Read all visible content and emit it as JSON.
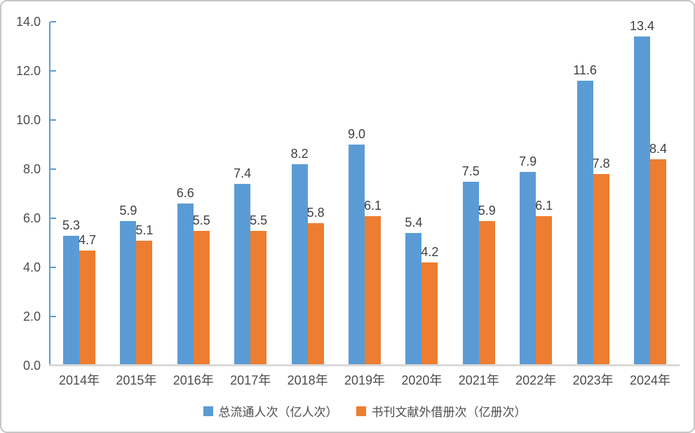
{
  "chart_data": {
    "type": "bar",
    "title": "",
    "categories": [
      "2014年",
      "2015年",
      "2016年",
      "2017年",
      "2018年",
      "2019年",
      "2020年",
      "2021年",
      "2022年",
      "2023年",
      "2024年"
    ],
    "series": [
      {
        "name": "总流通人次（亿人次）",
        "color": "#5b9bd5",
        "values": [
          5.3,
          5.9,
          6.6,
          7.4,
          8.2,
          9.0,
          5.4,
          7.5,
          7.9,
          11.6,
          13.4
        ],
        "labels": [
          "5.3",
          "5.9",
          "6.6",
          "7.4",
          "8.2",
          "9.0",
          "5.4",
          "7.5",
          "7.9",
          "11.6",
          "13.4"
        ]
      },
      {
        "name": "书刊文献外借册次（亿册次）",
        "color": "#ed7d31",
        "values": [
          4.7,
          5.1,
          5.5,
          5.5,
          5.8,
          6.1,
          4.2,
          5.9,
          6.1,
          7.8,
          8.4
        ],
        "labels": [
          "4.7",
          "5.1",
          "5.5",
          "5.5",
          "5.8",
          "6.1",
          "4.2",
          "5.9",
          "6.1",
          "7.8",
          "8.4"
        ]
      }
    ],
    "ylim": [
      0,
      14
    ],
    "ytick_step": 2,
    "ytick_labels": [
      "0.0",
      "2.0",
      "4.0",
      "6.0",
      "8.0",
      "10.0",
      "12.0",
      "14.0"
    ],
    "xlabel": "",
    "ylabel": "",
    "grid": false,
    "legend_position": "bottom",
    "axis_color": "#5b9bd5",
    "baseline_color": "#d9d9d9",
    "text_color": "#4d4d4d"
  }
}
